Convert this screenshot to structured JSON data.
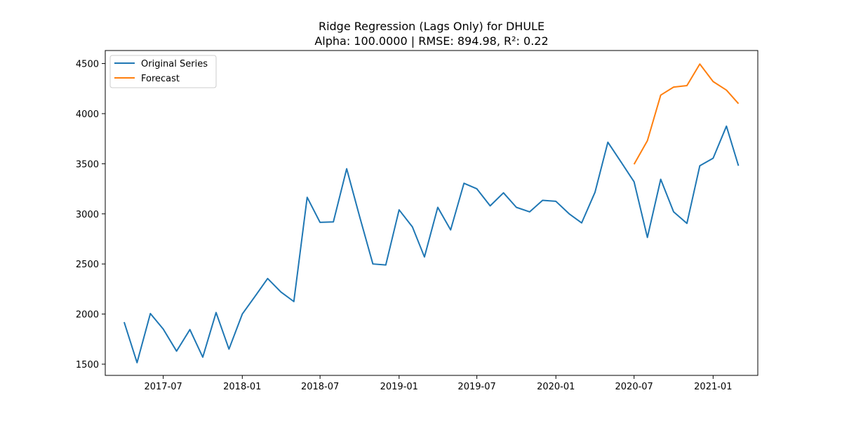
{
  "chart_data": {
    "type": "line",
    "title": "Ridge Regression (Lags Only) for DHULE",
    "subtitle": "Alpha: 100.0000 | RMSE: 894.98, R²: 0.22",
    "xlabel": "",
    "ylabel": "",
    "xlim": [
      "2017-02-16",
      "2021-04-15"
    ],
    "ylim": [
      1388,
      4630
    ],
    "x_ticks": [
      "2017-07",
      "2018-01",
      "2018-07",
      "2019-01",
      "2019-07",
      "2020-01",
      "2020-07",
      "2021-01"
    ],
    "y_ticks": [
      1500,
      2000,
      2500,
      3000,
      3500,
      4000,
      4500
    ],
    "grid": false,
    "legend": "upper left",
    "series": [
      {
        "name": "Original Series",
        "color": "#1f77b4",
        "x": [
          "2017-04-01",
          "2017-05-01",
          "2017-06-01",
          "2017-07-01",
          "2017-08-01",
          "2017-09-01",
          "2017-10-01",
          "2017-11-01",
          "2017-12-01",
          "2018-01-01",
          "2018-02-01",
          "2018-03-01",
          "2018-04-01",
          "2018-05-01",
          "2018-06-01",
          "2018-07-01",
          "2018-08-01",
          "2018-09-01",
          "2018-10-01",
          "2018-11-01",
          "2018-12-01",
          "2019-01-01",
          "2019-02-01",
          "2019-03-01",
          "2019-04-01",
          "2019-05-01",
          "2019-06-01",
          "2019-07-01",
          "2019-08-01",
          "2019-09-01",
          "2019-10-01",
          "2019-11-01",
          "2019-12-01",
          "2020-01-01",
          "2020-02-01",
          "2020-03-01",
          "2020-04-01",
          "2020-05-01",
          "2020-06-01",
          "2020-07-01",
          "2020-08-01",
          "2020-09-01",
          "2020-10-01",
          "2020-11-01",
          "2020-12-01",
          "2021-01-01",
          "2021-02-01",
          "2021-03-01"
        ],
        "values": [
          1920,
          1515,
          2005,
          1850,
          1630,
          1845,
          1570,
          2015,
          1650,
          2000,
          2185,
          2355,
          2220,
          2125,
          3165,
          2915,
          2920,
          3450,
          2975,
          2500,
          2490,
          3040,
          2870,
          2570,
          3065,
          2840,
          3305,
          3250,
          3080,
          3210,
          3065,
          3020,
          3135,
          3125,
          3000,
          2910,
          3215,
          3715,
          3515,
          3320,
          2765,
          3345,
          3020,
          2905,
          3480,
          3555,
          3875,
          3480
        ]
      },
      {
        "name": "Forecast",
        "color": "#ff7f0e",
        "x": [
          "2020-07-01",
          "2020-08-01",
          "2020-09-01",
          "2020-10-01",
          "2020-11-01",
          "2020-12-01",
          "2021-01-01",
          "2021-02-01",
          "2021-03-01"
        ],
        "values": [
          3495,
          3730,
          4185,
          4265,
          4280,
          4495,
          4320,
          4235,
          4100
        ]
      }
    ]
  }
}
